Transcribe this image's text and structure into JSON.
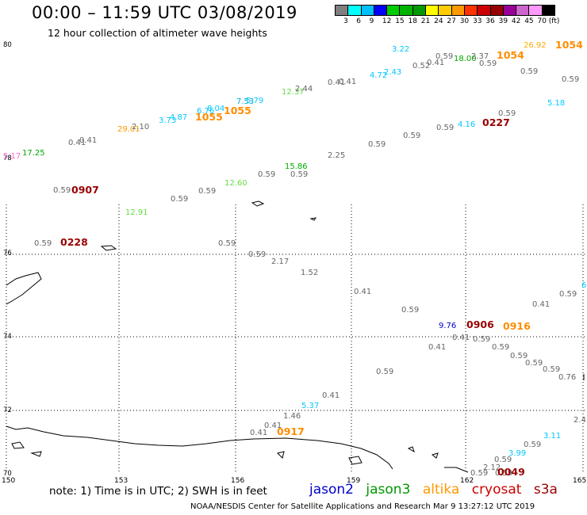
{
  "header": {
    "title": "00:00 – 11:59 UTC 03/08/2019",
    "subtitle": "12 hour collection of altimeter wave heights"
  },
  "color_scale": {
    "colors": [
      "#7f7f7f",
      "#00ffff",
      "#00bfff",
      "#0000ff",
      "#00cc00",
      "#00b300",
      "#009900",
      "#ffff00",
      "#ffcc00",
      "#ff9900",
      "#ff3300",
      "#cc0000",
      "#990000",
      "#990099",
      "#cc66cc",
      "#ff99ff",
      "#000000"
    ],
    "labels": [
      "3",
      "6",
      "9",
      "12",
      "15",
      "18",
      "21",
      "24",
      "27",
      "30",
      "33",
      "36",
      "39",
      "42",
      "45",
      "70",
      "(ft)"
    ]
  },
  "axes": {
    "lat_labels": [
      "80",
      "78",
      "76",
      "74",
      "72",
      "70"
    ],
    "lon_labels": [
      "150",
      "153",
      "156",
      "159",
      "162",
      "165"
    ]
  },
  "observations": [
    {
      "text": "3.22",
      "color": "#00c8ff"
    },
    {
      "text": "0.59",
      "color": "#666666"
    },
    {
      "text": "0.41",
      "color": "#666666"
    },
    {
      "text": "18.00",
      "color": "#00aa00"
    },
    {
      "text": "2.37",
      "color": "#666666"
    },
    {
      "text": "1054",
      "color": "#ff8c00",
      "big": true
    },
    {
      "text": "26.92",
      "color": "#ffaa00"
    },
    {
      "text": "1054",
      "color": "#ff8c00",
      "big": true
    },
    {
      "text": "0.52",
      "color": "#666666"
    },
    {
      "text": "0.59",
      "color": "#666666"
    },
    {
      "text": "4.72",
      "color": "#00c8ff"
    },
    {
      "text": "2.43",
      "color": "#00c8ff"
    },
    {
      "text": "0.59",
      "color": "#666666"
    },
    {
      "text": "0.59",
      "color": "#666666"
    },
    {
      "text": "0.41",
      "color": "#666666"
    },
    {
      "text": "0.41",
      "color": "#666666"
    },
    {
      "text": "12.37",
      "color": "#66dd44"
    },
    {
      "text": "2.44",
      "color": "#666666"
    },
    {
      "text": "5.18",
      "color": "#00c8ff"
    },
    {
      "text": "7.53",
      "color": "#00aadd"
    },
    {
      "text": "5.79",
      "color": "#00c8ff"
    },
    {
      "text": "6.76",
      "color": "#00c8ff"
    },
    {
      "text": "8.04",
      "color": "#00c8ff"
    },
    {
      "text": "1055",
      "color": "#ff8c00",
      "big": true
    },
    {
      "text": "1055",
      "color": "#ff8c00",
      "big": true
    },
    {
      "text": "3.73",
      "color": "#00c8ff"
    },
    {
      "text": "4.87",
      "color": "#00c8ff"
    },
    {
      "text": "0.59",
      "color": "#666666"
    },
    {
      "text": "29.01",
      "color": "#ff9900"
    },
    {
      "text": "2.10",
      "color": "#666666"
    },
    {
      "text": "0.59",
      "color": "#666666"
    },
    {
      "text": "4.16",
      "color": "#00c8ff"
    },
    {
      "text": "0227",
      "color": "#990000",
      "big": true
    },
    {
      "text": "0.41",
      "color": "#666666"
    },
    {
      "text": "0.41",
      "color": "#666666"
    },
    {
      "text": "0.59",
      "color": "#666666"
    },
    {
      "text": "0.59",
      "color": "#666666"
    },
    {
      "text": "5.17",
      "color": "#ff66cc"
    },
    {
      "text": "17.25",
      "color": "#00aa00"
    },
    {
      "text": "2.25",
      "color": "#666666"
    },
    {
      "text": "15.86",
      "color": "#00aa00"
    },
    {
      "text": "0.59",
      "color": "#666666"
    },
    {
      "text": "0.59",
      "color": "#666666"
    },
    {
      "text": "12.60",
      "color": "#66dd44"
    },
    {
      "text": "0.59",
      "color": "#666666"
    },
    {
      "text": "0.59",
      "color": "#666666"
    },
    {
      "text": "0907",
      "color": "#990000",
      "big": true
    },
    {
      "text": "0.59",
      "color": "#666666"
    },
    {
      "text": "12.91",
      "color": "#66dd44"
    },
    {
      "text": "0.59",
      "color": "#666666"
    },
    {
      "text": "0228",
      "color": "#990000",
      "big": true
    },
    {
      "text": "0.59",
      "color": "#666666"
    },
    {
      "text": "0.59",
      "color": "#666666"
    },
    {
      "text": "2.17",
      "color": "#666666"
    },
    {
      "text": "1.52",
      "color": "#666666"
    },
    {
      "text": "6",
      "color": "#00c8ff"
    },
    {
      "text": "0.41",
      "color": "#666666"
    },
    {
      "text": "0.59",
      "color": "#666666"
    },
    {
      "text": "0.41",
      "color": "#666666"
    },
    {
      "text": "0.59",
      "color": "#666666"
    },
    {
      "text": "9.76",
      "color": "#0000cc"
    },
    {
      "text": "0906",
      "color": "#990000",
      "big": true
    },
    {
      "text": "0916",
      "color": "#ff8c00",
      "big": true
    },
    {
      "text": "0.41",
      "color": "#666666"
    },
    {
      "text": "0.59",
      "color": "#666666"
    },
    {
      "text": "0.41",
      "color": "#666666"
    },
    {
      "text": "0.59",
      "color": "#666666"
    },
    {
      "text": "0.59",
      "color": "#666666"
    },
    {
      "text": "0.59",
      "color": "#666666"
    },
    {
      "text": "0.59",
      "color": "#666666"
    },
    {
      "text": "0.76",
      "color": "#666666"
    },
    {
      "text": "0.59",
      "color": "#666666"
    },
    {
      "text": "0.41",
      "color": "#666666"
    },
    {
      "text": "5.37",
      "color": "#00c8ff"
    },
    {
      "text": "1.46",
      "color": "#666666"
    },
    {
      "text": "2.4",
      "color": "#666666"
    },
    {
      "text": "0.41",
      "color": "#666666"
    },
    {
      "text": "0.41",
      "color": "#666666"
    },
    {
      "text": "0917",
      "color": "#ff8c00",
      "big": true
    },
    {
      "text": "3.11",
      "color": "#00c8ff"
    },
    {
      "text": "0.59",
      "color": "#666666"
    },
    {
      "text": "3.99",
      "color": "#00c8ff"
    },
    {
      "text": "0.59",
      "color": "#666666"
    },
    {
      "text": "2.12",
      "color": "#666666"
    },
    {
      "text": "0.59",
      "color": "#666666"
    },
    {
      "text": "0.59",
      "color": "#666666"
    },
    {
      "text": "0049",
      "color": "#990000",
      "big": true
    }
  ],
  "footer": {
    "note": "note:  1) Time is in UTC;  2) SWH is in feet",
    "satellites": [
      {
        "name": "jason2",
        "color": "#0000cc"
      },
      {
        "name": "jason3",
        "color": "#009900"
      },
      {
        "name": "altika",
        "color": "#ff9900"
      },
      {
        "name": "cryosat",
        "color": "#cc0000"
      },
      {
        "name": "s3a",
        "color": "#990000"
      }
    ],
    "credit": "NOAA/NESDIS Center for Satellite Applications and Research    Mar  9 13:27:12 UTC 2019"
  }
}
